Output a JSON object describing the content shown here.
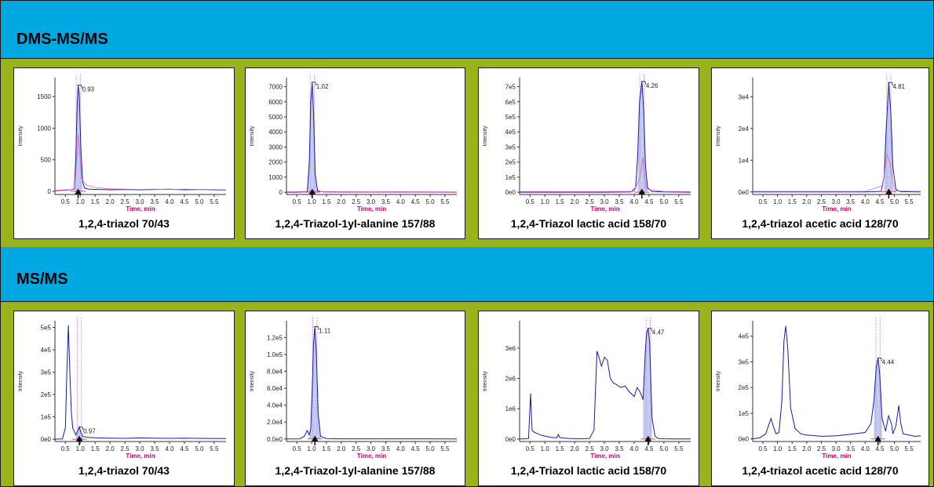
{
  "colors": {
    "band": "#00a8e2",
    "cell_border": "#99b31a",
    "trace": "#1a1aa8",
    "pink": "#e060c0",
    "red": "#cc2020",
    "axis_label": "#cc0077"
  },
  "sections": [
    {
      "title": "DMS-MS/MS"
    },
    {
      "title": "MS/MS"
    }
  ],
  "chart_data": [
    {
      "type": "line",
      "section": "DMS-MS/MS",
      "caption": "1,2,4-triazol 70/43",
      "xlabel": "Time, min",
      "ylabel": "Intensity",
      "xlim": [
        0.15,
        5.9
      ],
      "ylim": [
        -50,
        1800
      ],
      "xticks": [
        "0.5",
        "1.0",
        "1.5",
        "2.0",
        "2.5",
        "3.0",
        "3.5",
        "4.0",
        "4.5",
        "5.0",
        "5.5"
      ],
      "yticks": [
        "0",
        "500",
        "1000",
        "1500"
      ],
      "yticks_values": [
        0,
        500,
        1000,
        1500
      ],
      "peak_label": "0.93",
      "peak": {
        "x": 0.93,
        "y": 1680
      },
      "series": [
        {
          "x": [
            0.15,
            0.5,
            0.7,
            0.8,
            0.85,
            0.9,
            0.93,
            0.97,
            1.02,
            1.08,
            1.15,
            1.3,
            1.6,
            2.0,
            2.5,
            3.0,
            3.5,
            4.0,
            4.5,
            5.0,
            5.5,
            5.9
          ],
          "y": [
            10,
            20,
            25,
            40,
            500,
            1400,
            1680,
            1500,
            700,
            150,
            50,
            35,
            30,
            25,
            30,
            25,
            30,
            35,
            25,
            30,
            25,
            20
          ]
        },
        {
          "x": [
            0.15,
            0.5,
            0.8,
            0.9,
            0.93,
            0.97,
            1.05,
            1.2,
            1.5,
            2.0,
            2.5,
            3.0,
            3.5,
            4.0,
            4.5,
            5.0,
            5.5,
            5.9
          ],
          "y": [
            15,
            25,
            30,
            600,
            900,
            700,
            200,
            100,
            60,
            40,
            35,
            30,
            35,
            30,
            35,
            30,
            30,
            25
          ]
        }
      ]
    },
    {
      "type": "line",
      "section": "DMS-MS/MS",
      "caption": "1,2,4-Triazol-1yl-alanine 157/88",
      "xlabel": "Time, min",
      "ylabel": "Intensity",
      "xlim": [
        0.15,
        5.9
      ],
      "ylim": [
        -150,
        7600
      ],
      "xticks": [
        "0.5",
        "1.0",
        "1.5",
        "2.0",
        "2.5",
        "3.0",
        "3.5",
        "4.0",
        "4.5",
        "5.0",
        "5.5"
      ],
      "yticks": [
        "0",
        "1000",
        "2000",
        "3000",
        "4000",
        "5000",
        "6000",
        "7000"
      ],
      "yticks_values": [
        0,
        1000,
        2000,
        3000,
        4000,
        5000,
        6000,
        7000
      ],
      "peak_label": "1.02",
      "peak": {
        "x": 1.02,
        "y": 7300
      },
      "series": [
        {
          "x": [
            0.15,
            0.6,
            0.85,
            0.92,
            0.97,
            1.02,
            1.07,
            1.12,
            1.2,
            1.4,
            2.0,
            3.0,
            4.0,
            5.0,
            5.9
          ],
          "y": [
            0,
            5,
            30,
            2000,
            6000,
            7300,
            5000,
            1200,
            100,
            20,
            10,
            10,
            10,
            10,
            5
          ]
        },
        {
          "x": [
            0.15,
            1.0,
            2.0,
            3.0,
            4.0,
            5.0,
            5.9
          ],
          "y": [
            30,
            40,
            30,
            25,
            30,
            25,
            20
          ]
        }
      ]
    },
    {
      "type": "line",
      "section": "DMS-MS/MS",
      "caption": "1,2,4-Triazol lactic acid 158/70",
      "xlabel": "Time, min",
      "ylabel": "Intensity",
      "xlim": [
        0.15,
        5.9
      ],
      "ylim": [
        -15000,
        760000
      ],
      "xticks": [
        "0.5",
        "1.0",
        "1.5",
        "2.0",
        "2.5",
        "3.0",
        "3.5",
        "4.0",
        "4.5",
        "5.0",
        "5.5"
      ],
      "yticks": [
        "0e0",
        "1e5",
        "2e5",
        "3e5",
        "4e5",
        "5e5",
        "6e5",
        "7e5"
      ],
      "yticks_values": [
        0,
        100000,
        200000,
        300000,
        400000,
        500000,
        600000,
        700000
      ],
      "peak_label": "4.26",
      "peak": {
        "x": 4.26,
        "y": 735000
      },
      "series": [
        {
          "x": [
            0.15,
            1.0,
            2.0,
            3.0,
            3.9,
            4.05,
            4.12,
            4.18,
            4.26,
            4.32,
            4.38,
            4.45,
            4.6,
            5.0,
            5.9
          ],
          "y": [
            0,
            0,
            0,
            0,
            2000,
            30000,
            250000,
            600000,
            735000,
            550000,
            180000,
            30000,
            5000,
            2000,
            0
          ]
        },
        {
          "x": [
            0.15,
            1.0,
            2.0,
            3.0,
            4.0,
            4.2,
            4.3,
            4.4,
            5.0,
            5.9
          ],
          "y": [
            5000,
            5000,
            4000,
            5000,
            5000,
            100000,
            230000,
            20000,
            5000,
            4000
          ]
        }
      ]
    },
    {
      "type": "line",
      "section": "DMS-MS/MS",
      "caption": "1,2,4-triazol acetic acid 128/70",
      "xlabel": "Time, min",
      "ylabel": "Intensity",
      "xlim": [
        0.15,
        5.9
      ],
      "ylim": [
        -800,
        36000
      ],
      "xticks": [
        "0.5",
        "1.0",
        "1.5",
        "2.0",
        "2.5",
        "3.0",
        "3.5",
        "4.0",
        "4.5",
        "5.0",
        "5.5"
      ],
      "yticks": [
        "0e0",
        "1e4",
        "2e4",
        "3e4"
      ],
      "yticks_values": [
        0,
        10000,
        20000,
        30000
      ],
      "peak_label": "4.81",
      "peak": {
        "x": 4.81,
        "y": 34500
      },
      "series": [
        {
          "x": [
            0.15,
            1.0,
            2.0,
            3.0,
            4.0,
            4.55,
            4.65,
            4.72,
            4.81,
            4.88,
            4.95,
            5.05,
            5.2,
            5.9
          ],
          "y": [
            0,
            0,
            0,
            0,
            0,
            200,
            5000,
            20000,
            34500,
            25000,
            8000,
            800,
            100,
            0
          ]
        },
        {
          "x": [
            0.15,
            1.0,
            2.0,
            3.0,
            4.0,
            4.6,
            4.75,
            4.85,
            5.0,
            5.9
          ],
          "y": [
            200,
            200,
            200,
            200,
            200,
            2000,
            12000,
            9000,
            300,
            200
          ]
        }
      ]
    },
    {
      "type": "line",
      "section": "MS/MS",
      "caption": "1,2,4-triazol 70/43",
      "xlabel": "Time, min",
      "ylabel": "Intensity",
      "xlim": [
        0.15,
        5.9
      ],
      "ylim": [
        -10000,
        530000
      ],
      "xticks": [
        "0.5",
        "1.0",
        "1.5",
        "2.0",
        "2.5",
        "3.0",
        "3.5",
        "4.0",
        "4.5",
        "5.0",
        "5.5"
      ],
      "yticks": [
        "0e0",
        "1e5",
        "2e5",
        "3e5",
        "4e5",
        "5e5"
      ],
      "yticks_values": [
        0,
        100000,
        200000,
        300000,
        400000,
        500000
      ],
      "peak_label": "0.97",
      "peak": {
        "x": 0.97,
        "y": 55000
      },
      "series": [
        {
          "x": [
            0.15,
            0.4,
            0.5,
            0.55,
            0.6,
            0.65,
            0.7,
            0.75,
            0.85,
            0.92,
            0.97,
            1.02,
            1.1,
            1.3,
            1.6,
            2.0,
            2.5,
            3.0,
            3.5,
            4.0,
            4.5,
            5.0,
            5.9
          ],
          "y": [
            0,
            2000,
            50000,
            300000,
            510000,
            300000,
            120000,
            50000,
            20000,
            40000,
            55000,
            30000,
            12000,
            8000,
            6000,
            5000,
            4000,
            6000,
            5000,
            4000,
            5000,
            4000,
            3000
          ]
        }
      ]
    },
    {
      "type": "line",
      "section": "MS/MS",
      "caption": "1,2,4-Triazol-1yl-alanine 157/88",
      "xlabel": "Time, min",
      "ylabel": "Intensity",
      "xlim": [
        0.15,
        5.9
      ],
      "ylim": [
        -3000,
        140000
      ],
      "xticks": [
        "0.5",
        "1.0",
        "1.5",
        "2.0",
        "2.5",
        "3.0",
        "3.5",
        "4.0",
        "4.5",
        "5.0",
        "5.5"
      ],
      "yticks": [
        "0.0e0",
        "2.0e4",
        "4.0e4",
        "6.0e4",
        "8.0e4",
        "1.0e5",
        "1.2e5"
      ],
      "yticks_values": [
        0,
        20000,
        40000,
        60000,
        80000,
        100000,
        120000
      ],
      "peak_label": "1.11",
      "peak": {
        "x": 1.11,
        "y": 133000
      },
      "series": [
        {
          "x": [
            0.15,
            0.6,
            0.75,
            0.85,
            0.92,
            0.97,
            1.02,
            1.06,
            1.11,
            1.16,
            1.22,
            1.3,
            1.5,
            2.0,
            3.0,
            4.0,
            5.0,
            5.9
          ],
          "y": [
            0,
            200,
            3000,
            10000,
            5000,
            12000,
            60000,
            110000,
            133000,
            100000,
            30000,
            3000,
            500,
            200,
            200,
            200,
            200,
            100
          ]
        }
      ]
    },
    {
      "type": "line",
      "section": "MS/MS",
      "caption": "1,2,4-Triazol lactic acid 158/70",
      "xlabel": "Time, min",
      "ylabel": "Intensity",
      "xlim": [
        0.15,
        5.9
      ],
      "ylim": [
        -80000,
        3900000
      ],
      "xticks": [
        "0.5",
        "1.0",
        "1.5",
        "2.0",
        "2.5",
        "3.0",
        "3.5",
        "4.0",
        "4.5",
        "5.0",
        "5.5"
      ],
      "yticks": [
        "0e0",
        "1e6",
        "2e6",
        "3e6"
      ],
      "yticks_values": [
        0,
        1000000,
        2000000,
        3000000
      ],
      "peak_label": "4.47",
      "peak": {
        "x": 4.47,
        "y": 3650000
      },
      "series": [
        {
          "x": [
            0.15,
            0.45,
            0.52,
            0.57,
            0.6,
            0.7,
            0.9,
            1.2,
            1.4,
            1.45,
            1.5,
            1.8,
            2.2,
            2.5,
            2.65,
            2.75,
            2.82,
            2.9,
            3.0,
            3.1,
            3.2,
            3.3,
            3.4,
            3.55,
            3.7,
            3.8,
            3.9,
            4.0,
            4.1,
            4.2,
            4.3,
            4.38,
            4.42,
            4.47,
            4.52,
            4.6,
            4.7,
            4.8,
            5.0,
            5.3,
            5.9
          ],
          "y": [
            0,
            20000,
            1500000,
            300000,
            250000,
            200000,
            120000,
            60000,
            40000,
            150000,
            50000,
            20000,
            10000,
            20000,
            300000,
            2900000,
            2700000,
            2400000,
            2700000,
            2600000,
            2000000,
            1850000,
            1800000,
            1700000,
            1750000,
            1600000,
            1500000,
            1400000,
            1700000,
            1550000,
            1300000,
            3000000,
            3500000,
            3650000,
            3200000,
            700000,
            100000,
            20000,
            10000,
            5000,
            3000
          ]
        }
      ]
    },
    {
      "type": "line",
      "section": "MS/MS",
      "caption": "1,2,4-triazol acetic acid 128/70",
      "xlabel": "Time, min",
      "ylabel": "Intensity",
      "xlim": [
        0.15,
        5.9
      ],
      "ylim": [
        -10000,
        460000
      ],
      "xticks": [
        "0.5",
        "1.0",
        "1.5",
        "2.0",
        "2.5",
        "3.0",
        "3.5",
        "4.0",
        "4.5",
        "5.0",
        "5.5"
      ],
      "yticks": [
        "0e0",
        "1e5",
        "2e5",
        "3e5",
        "4e5"
      ],
      "yticks_values": [
        0,
        100000,
        200000,
        300000,
        400000
      ],
      "peak_label": "4.44",
      "peak": {
        "x": 4.44,
        "y": 315000
      },
      "series": [
        {
          "x": [
            0.15,
            0.4,
            0.6,
            0.7,
            0.78,
            0.85,
            0.95,
            1.05,
            1.15,
            1.22,
            1.28,
            1.35,
            1.45,
            1.6,
            1.8,
            2.0,
            2.5,
            3.0,
            3.5,
            4.0,
            4.2,
            4.3,
            4.38,
            4.44,
            4.5,
            4.58,
            4.7,
            4.8,
            4.9,
            4.95,
            5.05,
            5.15,
            5.22,
            5.3,
            5.5,
            5.7,
            5.9
          ],
          "y": [
            0,
            5000,
            20000,
            55000,
            80000,
            50000,
            20000,
            25000,
            150000,
            380000,
            440000,
            350000,
            120000,
            40000,
            20000,
            15000,
            10000,
            12000,
            18000,
            25000,
            60000,
            150000,
            280000,
            315000,
            250000,
            80000,
            30000,
            90000,
            60000,
            20000,
            50000,
            130000,
            60000,
            20000,
            15000,
            10000,
            12000
          ]
        }
      ]
    }
  ]
}
